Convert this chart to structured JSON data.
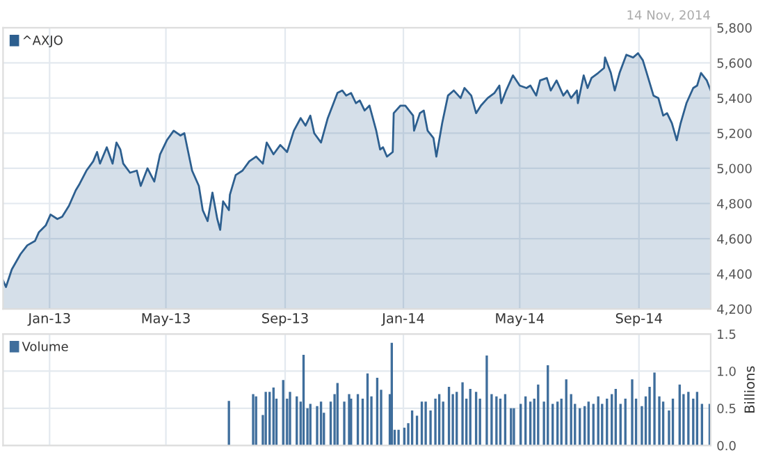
{
  "chart_data": [
    {
      "type": "area",
      "annotations": [
        "14 Nov, 2014"
      ],
      "legend": "top left",
      "grid": true,
      "xlim": [
        "2012-11-14",
        "2014-11-14"
      ],
      "xticks": [
        {
          "value": "2013-01-01",
          "label": "Jan-13"
        },
        {
          "value": "2013-05-01",
          "label": "May-13"
        },
        {
          "value": "2013-09-01",
          "label": "Sep-13"
        },
        {
          "value": "2014-01-01",
          "label": "Jan-14"
        },
        {
          "value": "2014-05-01",
          "label": "May-14"
        },
        {
          "value": "2014-09-01",
          "label": "Sep-14"
        }
      ],
      "ylim": [
        4200,
        5800
      ],
      "yticks": [
        {
          "value": 4200,
          "label": "4,200"
        },
        {
          "value": 4400,
          "label": "4,400"
        },
        {
          "value": 4600,
          "label": "4,600"
        },
        {
          "value": 4800,
          "label": "4,800"
        },
        {
          "value": 5000,
          "label": "5,000"
        },
        {
          "value": 5200,
          "label": "5,200"
        },
        {
          "value": 5400,
          "label": "5,400"
        },
        {
          "value": 5600,
          "label": "5,600"
        },
        {
          "value": 5800,
          "label": "5,800"
        }
      ],
      "series": [
        {
          "name": "^AXJO",
          "color": "#2d5f8f",
          "x": [
            "2012-11-14",
            "2012-11-17",
            "2012-11-23",
            "2012-12-02",
            "2012-12-09",
            "2012-12-17",
            "2012-12-21",
            "2012-12-28",
            "2013-01-02",
            "2013-01-09",
            "2013-01-14",
            "2013-01-21",
            "2013-01-28",
            "2013-02-01",
            "2013-02-08",
            "2013-02-15",
            "2013-02-19",
            "2013-02-22",
            "2013-03-01",
            "2013-03-07",
            "2013-03-11",
            "2013-03-15",
            "2013-03-18",
            "2013-03-25",
            "2013-04-01",
            "2013-04-05",
            "2013-04-12",
            "2013-04-19",
            "2013-04-25",
            "2013-05-02",
            "2013-05-09",
            "2013-05-16",
            "2013-05-20",
            "2013-05-23",
            "2013-05-28",
            "2013-06-04",
            "2013-06-08",
            "2013-06-13",
            "2013-06-18",
            "2013-06-23",
            "2013-06-26",
            "2013-06-29",
            "2013-07-05",
            "2013-07-06",
            "2013-07-12",
            "2013-07-19",
            "2013-07-26",
            "2013-08-02",
            "2013-08-09",
            "2013-08-13",
            "2013-08-20",
            "2013-08-27",
            "2013-09-03",
            "2013-09-10",
            "2013-09-17",
            "2013-09-22",
            "2013-09-27",
            "2013-10-01",
            "2013-10-08",
            "2013-10-15",
            "2013-10-25",
            "2013-10-30",
            "2013-11-03",
            "2013-11-08",
            "2013-11-13",
            "2013-11-17",
            "2013-11-22",
            "2013-11-27",
            "2013-12-04",
            "2013-12-08",
            "2013-12-11",
            "2013-12-15",
            "2013-12-21",
            "2013-12-22",
            "2013-12-29",
            "2014-01-03",
            "2014-01-11",
            "2014-01-12",
            "2014-01-18",
            "2014-01-22",
            "2014-01-26",
            "2014-02-01",
            "2014-02-04",
            "2014-02-10",
            "2014-02-16",
            "2014-02-22",
            "2014-03-01",
            "2014-03-05",
            "2014-03-12",
            "2014-03-17",
            "2014-03-22",
            "2014-03-29",
            "2014-04-05",
            "2014-04-10",
            "2014-04-12",
            "2014-04-17",
            "2014-04-24",
            "2014-05-01",
            "2014-05-08",
            "2014-05-12",
            "2014-05-18",
            "2014-05-22",
            "2014-05-29",
            "2014-06-02",
            "2014-06-08",
            "2014-06-15",
            "2014-06-19",
            "2014-06-23",
            "2014-06-29",
            "2014-06-30",
            "2014-07-06",
            "2014-07-10",
            "2014-07-14",
            "2014-07-21",
            "2014-07-27",
            "2014-07-28",
            "2014-08-03",
            "2014-08-07",
            "2014-08-12",
            "2014-08-19",
            "2014-08-26",
            "2014-08-31",
            "2014-09-05",
            "2014-09-09",
            "2014-09-16",
            "2014-09-21",
            "2014-09-26",
            "2014-09-30",
            "2014-10-05",
            "2014-10-10",
            "2014-10-14",
            "2014-10-20",
            "2014-10-27",
            "2014-10-31",
            "2014-11-04",
            "2014-11-10",
            "2014-11-14"
          ],
          "values": [
            4362,
            4325,
            4425,
            4512,
            4562,
            4587,
            4637,
            4675,
            4737,
            4712,
            4725,
            4787,
            4875,
            4912,
            4987,
            5040,
            5093,
            5027,
            5120,
            5027,
            5147,
            5107,
            5027,
            4975,
            4987,
            4900,
            5000,
            4925,
            5080,
            5160,
            5214,
            5187,
            5200,
            5120,
            4987,
            4900,
            4762,
            4700,
            4862,
            4712,
            4650,
            4812,
            4762,
            4850,
            4962,
            4987,
            5040,
            5067,
            5027,
            5147,
            5080,
            5133,
            5093,
            5214,
            5286,
            5243,
            5300,
            5200,
            5147,
            5286,
            5429,
            5443,
            5414,
            5429,
            5371,
            5386,
            5329,
            5357,
            5214,
            5107,
            5120,
            5067,
            5093,
            5314,
            5357,
            5357,
            5300,
            5214,
            5314,
            5329,
            5214,
            5173,
            5067,
            5257,
            5414,
            5443,
            5400,
            5457,
            5414,
            5314,
            5357,
            5400,
            5429,
            5471,
            5371,
            5443,
            5529,
            5471,
            5457,
            5471,
            5414,
            5500,
            5514,
            5443,
            5500,
            5414,
            5443,
            5400,
            5443,
            5371,
            5529,
            5457,
            5514,
            5543,
            5571,
            5631,
            5543,
            5443,
            5543,
            5646,
            5631,
            5655,
            5615,
            5543,
            5414,
            5400,
            5300,
            5314,
            5257,
            5160,
            5257,
            5371,
            5457,
            5471,
            5543,
            5500,
            5443
          ]
        }
      ]
    },
    {
      "type": "bar",
      "ylabel": "Billions",
      "legend": "top left",
      "grid": true,
      "tick_labels": "y",
      "xlim": [
        "2012-11-14",
        "2014-11-14"
      ],
      "xticks": [
        {
          "value": "2013-01-01",
          "label": null
        },
        {
          "value": "2013-05-01",
          "label": null
        },
        {
          "value": "2013-09-01",
          "label": null
        },
        {
          "value": "2014-01-01",
          "label": null
        },
        {
          "value": "2014-05-01",
          "label": null
        },
        {
          "value": "2014-09-01",
          "label": null
        }
      ],
      "ylim": [
        0,
        1.5
      ],
      "yticks": [
        {
          "value": 0,
          "label": "0.0"
        },
        0.5,
        {
          "value": 1,
          "label": "1.0"
        },
        1.5
      ],
      "series": [
        {
          "name": "Volume",
          "color": "#3f6e9c",
          "x": [
            "2013-07-05",
            "2013-07-30",
            "2013-08-02",
            "2013-08-09",
            "2013-08-12",
            "2013-08-16",
            "2013-08-20",
            "2013-08-23",
            "2013-08-30",
            "2013-09-03",
            "2013-09-06",
            "2013-09-13",
            "2013-09-17",
            "2013-09-20",
            "2013-09-24",
            "2013-09-27",
            "2013-10-04",
            "2013-10-08",
            "2013-10-11",
            "2013-10-18",
            "2013-10-22",
            "2013-10-25",
            "2013-11-01",
            "2013-11-06",
            "2013-11-08",
            "2013-11-15",
            "2013-11-20",
            "2013-11-25",
            "2013-11-29",
            "2013-12-05",
            "2013-12-09",
            "2013-12-18",
            "2013-12-20",
            "2013-12-23",
            "2013-12-27",
            "2014-01-02",
            "2014-01-06",
            "2014-01-10",
            "2014-01-15",
            "2014-01-20",
            "2014-01-24",
            "2014-01-29",
            "2014-02-03",
            "2014-02-07",
            "2014-02-11",
            "2014-02-17",
            "2014-02-21",
            "2014-02-25",
            "2014-03-03",
            "2014-03-07",
            "2014-03-11",
            "2014-03-17",
            "2014-03-21",
            "2014-03-28",
            "2014-04-02",
            "2014-04-07",
            "2014-04-11",
            "2014-04-16",
            "2014-04-22",
            "2014-04-25",
            "2014-05-02",
            "2014-05-07",
            "2014-05-12",
            "2014-05-16",
            "2014-05-20",
            "2014-05-26",
            "2014-05-30",
            "2014-06-04",
            "2014-06-09",
            "2014-06-13",
            "2014-06-18",
            "2014-06-23",
            "2014-06-27",
            "2014-07-02",
            "2014-07-07",
            "2014-07-11",
            "2014-07-16",
            "2014-07-21",
            "2014-07-25",
            "2014-07-30",
            "2014-08-04",
            "2014-08-08",
            "2014-08-13",
            "2014-08-18",
            "2014-08-25",
            "2014-08-29",
            "2014-09-04",
            "2014-09-08",
            "2014-09-12",
            "2014-09-17",
            "2014-09-22",
            "2014-09-26",
            "2014-10-02",
            "2014-10-06",
            "2014-10-13",
            "2014-10-17",
            "2014-10-22",
            "2014-10-27",
            "2014-10-31",
            "2014-11-05",
            "2014-11-13"
          ],
          "values": [
            0.6,
            0.69,
            0.66,
            0.41,
            0.72,
            0.72,
            0.78,
            0.63,
            0.88,
            0.63,
            0.72,
            0.66,
            0.59,
            1.22,
            0.5,
            0.56,
            0.53,
            0.59,
            0.44,
            0.59,
            0.69,
            0.84,
            0.59,
            0.69,
            0.63,
            0.69,
            0.63,
            0.97,
            0.66,
            0.91,
            0.75,
            0.69,
            1.38,
            0.21,
            0.21,
            0.24,
            0.3,
            0.47,
            0.4,
            0.59,
            0.59,
            0.47,
            0.63,
            0.69,
            0.59,
            0.79,
            0.69,
            0.72,
            0.85,
            0.63,
            0.76,
            0.72,
            0.63,
            1.21,
            0.69,
            0.66,
            0.63,
            0.69,
            0.5,
            0.5,
            0.56,
            0.66,
            0.59,
            0.63,
            0.82,
            0.59,
            1.08,
            0.56,
            0.59,
            0.63,
            0.89,
            0.69,
            0.56,
            0.5,
            0.53,
            0.59,
            0.56,
            0.66,
            0.56,
            0.63,
            0.69,
            0.76,
            0.56,
            0.63,
            0.89,
            0.63,
            0.53,
            0.66,
            0.79,
            0.98,
            0.66,
            0.59,
            0.47,
            0.63,
            0.82,
            0.69,
            0.72,
            0.63,
            0.72,
            0.56,
            0.56
          ]
        }
      ]
    }
  ]
}
